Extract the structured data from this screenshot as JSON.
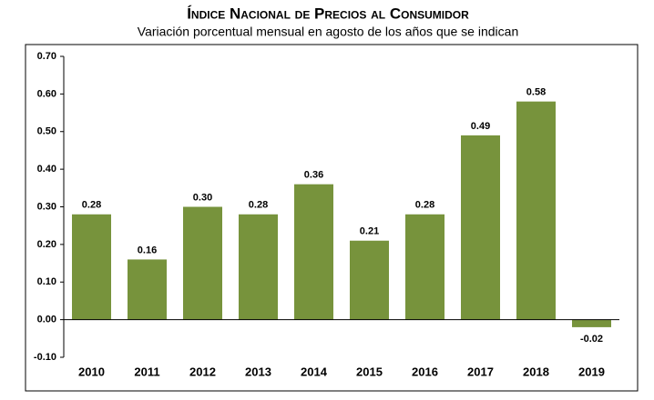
{
  "chart_data": {
    "type": "bar",
    "title": "Índice Nacional de Precios al Consumidor",
    "subtitle": "Variación porcentual mensual en agosto de los años que se indican",
    "categories": [
      "2010",
      "2011",
      "2012",
      "2013",
      "2014",
      "2015",
      "2016",
      "2017",
      "2018",
      "2019"
    ],
    "values": [
      0.28,
      0.16,
      0.3,
      0.28,
      0.36,
      0.21,
      0.28,
      0.49,
      0.58,
      -0.02
    ],
    "value_labels": [
      "0.28",
      "0.16",
      "0.30",
      "0.28",
      "0.36",
      "0.21",
      "0.28",
      "0.49",
      "0.58",
      "-0.02"
    ],
    "color": "#77933c",
    "ylim": [
      -0.1,
      0.7
    ],
    "yticks": [
      {
        "value": -0.1,
        "label": "-0.10"
      },
      {
        "value": 0,
        "label": "0.00"
      },
      {
        "value": 0.1,
        "label": "0.10"
      },
      {
        "value": 0.2,
        "label": "0.20"
      },
      {
        "value": 0.3,
        "label": "0.30"
      },
      {
        "value": 0.4,
        "label": "0.40"
      },
      {
        "value": 0.5,
        "label": "0.50"
      },
      {
        "value": 0.6,
        "label": "0.60"
      },
      {
        "value": 0.7,
        "label": "0.70"
      }
    ],
    "grid": false
  }
}
